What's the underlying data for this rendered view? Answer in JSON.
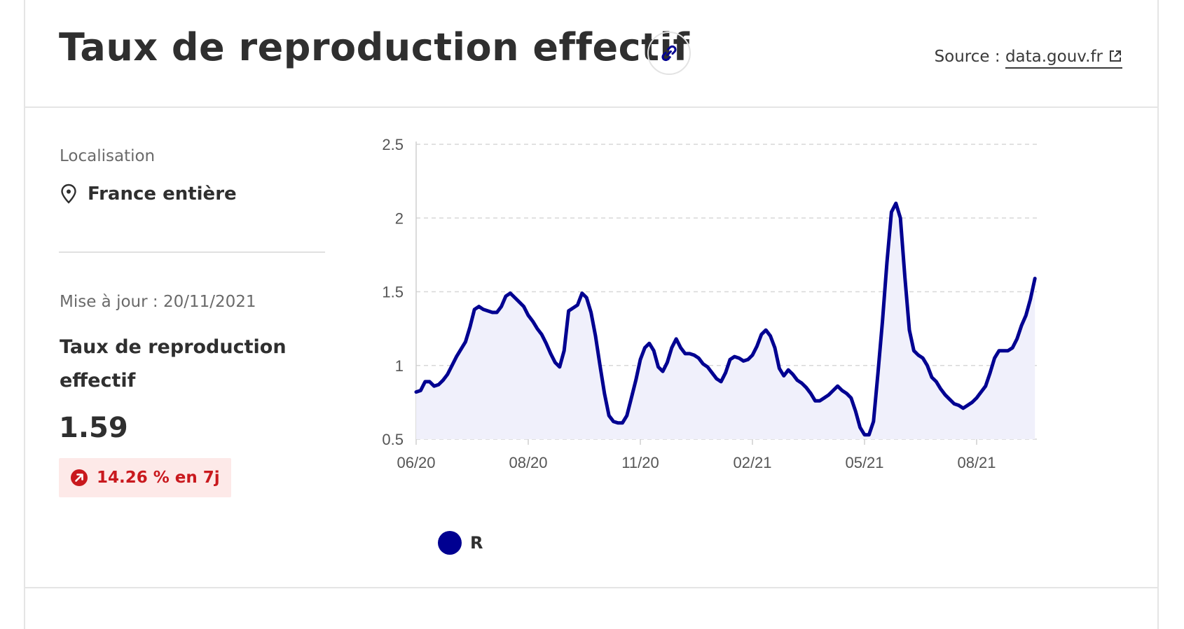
{
  "header": {
    "title": "Taux de reproduction effectif",
    "link_icon": "link-icon",
    "source_prefix": "Source : ",
    "source_link": "data.gouv.fr",
    "external_icon": "external-link-icon"
  },
  "sidebar": {
    "location_label": "Localisation",
    "location_icon": "map-pin-icon",
    "location_value": "France entière",
    "update_text": "Mise à jour : 20/11/2021",
    "metric_name": "Taux de reproduction effectif",
    "metric_value": "1.59",
    "change_icon": "arrow-up-right-circle-icon",
    "change_text": "14.26 % en 7j",
    "change_color": "#c9191e",
    "change_bg": "#fde9e8"
  },
  "chart_data": {
    "type": "area",
    "x_tick_labels": [
      "06/20",
      "08/20",
      "11/20",
      "02/21",
      "05/21",
      "08/21"
    ],
    "y_tick_labels": [
      "0.5",
      "1",
      "1.5",
      "2",
      "2.5"
    ],
    "ylim": [
      0.5,
      2.5
    ],
    "grid": true,
    "grid_style": "dashed-horizontal",
    "legend_position": "bottom-left",
    "series": [
      {
        "name": "R",
        "color": "#000091",
        "fill": "#f0f0fb",
        "points": [
          [
            0,
            0.82
          ],
          [
            2,
            0.83
          ],
          [
            4,
            0.89
          ],
          [
            6,
            0.89
          ],
          [
            8,
            0.86
          ],
          [
            10,
            0.87
          ],
          [
            12,
            0.9
          ],
          [
            14,
            0.94
          ],
          [
            16,
            1.0
          ],
          [
            18,
            1.06
          ],
          [
            20,
            1.11
          ],
          [
            22,
            1.16
          ],
          [
            24,
            1.26
          ],
          [
            26,
            1.38
          ],
          [
            28,
            1.4
          ],
          [
            30,
            1.38
          ],
          [
            32,
            1.37
          ],
          [
            34,
            1.36
          ],
          [
            36,
            1.36
          ],
          [
            38,
            1.4
          ],
          [
            40,
            1.47
          ],
          [
            42,
            1.49
          ],
          [
            44,
            1.46
          ],
          [
            46,
            1.43
          ],
          [
            48,
            1.4
          ],
          [
            50,
            1.34
          ],
          [
            52,
            1.3
          ],
          [
            54,
            1.25
          ],
          [
            56,
            1.21
          ],
          [
            58,
            1.15
          ],
          [
            60,
            1.08
          ],
          [
            62,
            1.02
          ],
          [
            64,
            0.99
          ],
          [
            66,
            1.1
          ],
          [
            68,
            1.37
          ],
          [
            70,
            1.39
          ],
          [
            72,
            1.41
          ],
          [
            74,
            1.49
          ],
          [
            76,
            1.46
          ],
          [
            78,
            1.36
          ],
          [
            80,
            1.2
          ],
          [
            82,
            1.0
          ],
          [
            84,
            0.81
          ],
          [
            86,
            0.66
          ],
          [
            88,
            0.62
          ],
          [
            90,
            0.61
          ],
          [
            92,
            0.61
          ],
          [
            94,
            0.66
          ],
          [
            96,
            0.78
          ],
          [
            98,
            0.9
          ],
          [
            100,
            1.04
          ],
          [
            102,
            1.12
          ],
          [
            104,
            1.15
          ],
          [
            106,
            1.1
          ],
          [
            108,
            0.99
          ],
          [
            110,
            0.96
          ],
          [
            112,
            1.02
          ],
          [
            114,
            1.12
          ],
          [
            116,
            1.18
          ],
          [
            118,
            1.12
          ],
          [
            120,
            1.08
          ],
          [
            122,
            1.08
          ],
          [
            124,
            1.07
          ],
          [
            126,
            1.05
          ],
          [
            128,
            1.01
          ],
          [
            130,
            0.99
          ],
          [
            132,
            0.95
          ],
          [
            134,
            0.91
          ],
          [
            136,
            0.89
          ],
          [
            138,
            0.95
          ],
          [
            140,
            1.04
          ],
          [
            142,
            1.06
          ],
          [
            144,
            1.05
          ],
          [
            146,
            1.03
          ],
          [
            148,
            1.04
          ],
          [
            150,
            1.07
          ],
          [
            152,
            1.13
          ],
          [
            154,
            1.21
          ],
          [
            156,
            1.24
          ],
          [
            158,
            1.2
          ],
          [
            160,
            1.12
          ],
          [
            162,
            0.98
          ],
          [
            164,
            0.93
          ],
          [
            166,
            0.97
          ],
          [
            168,
            0.94
          ],
          [
            170,
            0.9
          ],
          [
            172,
            0.88
          ],
          [
            174,
            0.85
          ],
          [
            176,
            0.81
          ],
          [
            178,
            0.76
          ],
          [
            180,
            0.76
          ],
          [
            182,
            0.78
          ],
          [
            184,
            0.8
          ],
          [
            186,
            0.83
          ],
          [
            188,
            0.86
          ],
          [
            190,
            0.83
          ],
          [
            192,
            0.81
          ],
          [
            194,
            0.78
          ],
          [
            196,
            0.69
          ],
          [
            198,
            0.58
          ],
          [
            200,
            0.53
          ],
          [
            202,
            0.53
          ],
          [
            204,
            0.62
          ],
          [
            206,
            0.95
          ],
          [
            208,
            1.3
          ],
          [
            210,
            1.7
          ],
          [
            212,
            2.04
          ],
          [
            214,
            2.1
          ],
          [
            216,
            2.0
          ],
          [
            218,
            1.6
          ],
          [
            220,
            1.24
          ],
          [
            222,
            1.1
          ],
          [
            224,
            1.07
          ],
          [
            226,
            1.05
          ],
          [
            228,
            1.0
          ],
          [
            230,
            0.92
          ],
          [
            232,
            0.89
          ],
          [
            234,
            0.84
          ],
          [
            236,
            0.8
          ],
          [
            238,
            0.77
          ],
          [
            240,
            0.74
          ],
          [
            242,
            0.73
          ],
          [
            244,
            0.71
          ],
          [
            246,
            0.73
          ],
          [
            248,
            0.75
          ],
          [
            250,
            0.78
          ],
          [
            252,
            0.82
          ],
          [
            254,
            0.86
          ],
          [
            256,
            0.95
          ],
          [
            258,
            1.05
          ],
          [
            260,
            1.1
          ],
          [
            262,
            1.1
          ],
          [
            264,
            1.1
          ],
          [
            266,
            1.12
          ],
          [
            268,
            1.18
          ],
          [
            270,
            1.27
          ],
          [
            272,
            1.34
          ],
          [
            274,
            1.45
          ],
          [
            276,
            1.59
          ]
        ]
      }
    ]
  }
}
